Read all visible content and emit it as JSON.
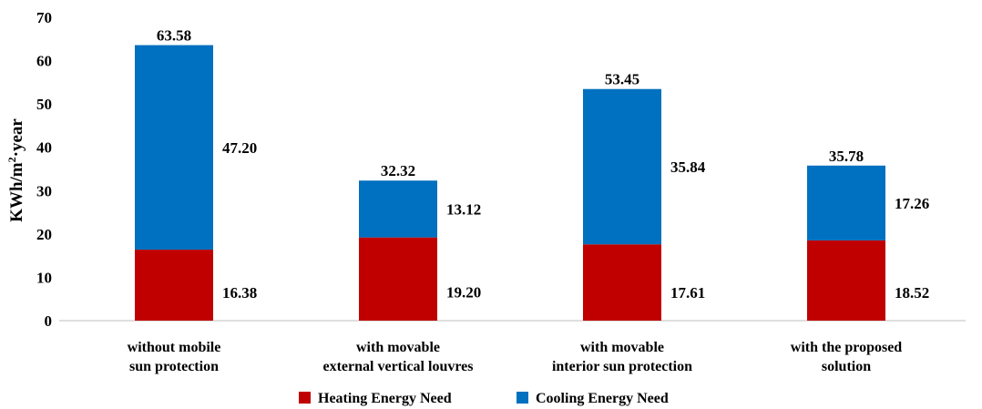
{
  "chart_data": {
    "type": "bar",
    "stacked": true,
    "categories": [
      [
        "without mobile",
        "sun protection"
      ],
      [
        "with movable",
        "external vertical louvres"
      ],
      [
        "with movable",
        "interior sun protection"
      ],
      [
        "with the proposed",
        "solution"
      ]
    ],
    "series": [
      {
        "name": "Heating Energy Need",
        "color": "#c00000",
        "values": [
          16.38,
          19.2,
          17.61,
          18.52
        ]
      },
      {
        "name": "Cooling Energy Need",
        "color": "#0070c0",
        "values": [
          47.2,
          13.12,
          35.84,
          17.26
        ]
      }
    ],
    "totals": [
      63.58,
      32.32,
      53.45,
      35.78
    ],
    "value_labels": {
      "heating": [
        "16.38",
        "19.20",
        "17.61",
        "18.52"
      ],
      "cooling": [
        "47.20",
        "13.12",
        "35.84",
        "17.26"
      ],
      "totals": [
        "63.58",
        "32.32",
        "53.45",
        "35.78"
      ]
    },
    "ylabel_main": "KWh/m",
    "ylabel_sup": "2",
    "ylabel_tail": "·year",
    "ylim": [
      0,
      70
    ],
    "yticks": [
      0,
      10,
      20,
      30,
      40,
      50,
      60,
      70
    ],
    "grid": false,
    "legend_position": "bottom"
  }
}
